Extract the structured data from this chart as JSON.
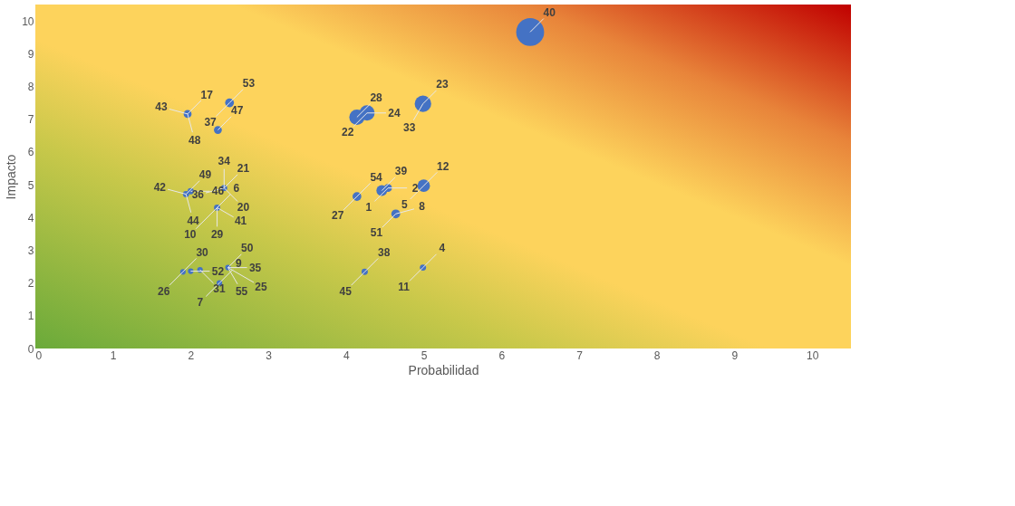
{
  "chart_data": {
    "type": "bubble",
    "xlabel": "Probabilidad",
    "ylabel": "Impacto",
    "xlim": [
      0,
      10.5
    ],
    "ylim": [
      0,
      10.5
    ],
    "xticks": [
      0,
      1,
      2,
      3,
      4,
      5,
      6,
      7,
      8,
      9,
      10
    ],
    "yticks": [
      0,
      1,
      2,
      3,
      4,
      5,
      6,
      7,
      8,
      9,
      10
    ],
    "grid": false,
    "series": [
      {
        "color": "#4472c4",
        "x": [
          6.37,
          1.96,
          2.5,
          2.35,
          4.14,
          4.27,
          4.99,
          1.94,
          2.0,
          2.43,
          2.34,
          4.14,
          4.46,
          4.54,
          5.0,
          4.64,
          1.9,
          2.0,
          2.12,
          2.48,
          2.37,
          4.24,
          4.99
        ],
        "values": [
          9.66,
          7.16,
          7.5,
          6.67,
          7.06,
          7.19,
          7.47,
          4.71,
          4.8,
          4.9,
          4.3,
          4.64,
          4.82,
          4.9,
          4.97,
          4.11,
          2.34,
          2.36,
          2.4,
          2.47,
          2.0,
          2.34,
          2.47
        ],
        "sizes": [
          1,
          0.08,
          0.1,
          0.08,
          0.3,
          0.3,
          0.35,
          0.05,
          0.05,
          0.05,
          0.05,
          0.1,
          0.15,
          0.08,
          0.2,
          0.1,
          0.04,
          0.04,
          0.04,
          0.04,
          0.04,
          0.05,
          0.05
        ]
      }
    ],
    "annotations": [
      {
        "text": "40",
        "x": 6.37,
        "y": 9.66
      },
      {
        "text": "17",
        "x": 1.96,
        "y": 7.16
      },
      {
        "text": "43",
        "x": 1.96,
        "y": 7.16
      },
      {
        "text": "48",
        "x": 1.96,
        "y": 7.16
      },
      {
        "text": "53",
        "x": 2.5,
        "y": 7.5
      },
      {
        "text": "37",
        "x": 2.5,
        "y": 7.5
      },
      {
        "text": "47",
        "x": 2.35,
        "y": 6.67
      },
      {
        "text": "28",
        "x": 4.14,
        "y": 7.06
      },
      {
        "text": "24",
        "x": 4.27,
        "y": 7.19
      },
      {
        "text": "22",
        "x": 4.27,
        "y": 7.19
      },
      {
        "text": "23",
        "x": 4.99,
        "y": 7.47
      },
      {
        "text": "33",
        "x": 4.99,
        "y": 7.47
      },
      {
        "text": "49",
        "x": 1.94,
        "y": 4.71
      },
      {
        "text": "42",
        "x": 1.94,
        "y": 4.71
      },
      {
        "text": "44",
        "x": 1.94,
        "y": 4.71
      },
      {
        "text": "46",
        "x": 2.0,
        "y": 4.8
      },
      {
        "text": "21",
        "x": 2.43,
        "y": 4.9
      },
      {
        "text": "34",
        "x": 2.43,
        "y": 4.9
      },
      {
        "text": "36",
        "x": 2.43,
        "y": 4.9
      },
      {
        "text": "20",
        "x": 2.43,
        "y": 4.9
      },
      {
        "text": "41",
        "x": 2.34,
        "y": 4.3
      },
      {
        "text": "6",
        "x": 2.34,
        "y": 4.3
      },
      {
        "text": "29",
        "x": 2.34,
        "y": 4.3
      },
      {
        "text": "10",
        "x": 2.34,
        "y": 4.3
      },
      {
        "text": "54",
        "x": 4.14,
        "y": 4.64
      },
      {
        "text": "27",
        "x": 4.14,
        "y": 4.64
      },
      {
        "text": "39",
        "x": 4.46,
        "y": 4.82
      },
      {
        "text": "2",
        "x": 4.54,
        "y": 4.9
      },
      {
        "text": "1",
        "x": 4.54,
        "y": 4.9
      },
      {
        "text": "12",
        "x": 5.0,
        "y": 4.97
      },
      {
        "text": "5",
        "x": 5.0,
        "y": 4.97
      },
      {
        "text": "8",
        "x": 4.64,
        "y": 4.11
      },
      {
        "text": "51",
        "x": 4.64,
        "y": 4.11
      },
      {
        "text": "30",
        "x": 1.9,
        "y": 2.34
      },
      {
        "text": "26",
        "x": 1.9,
        "y": 2.34
      },
      {
        "text": "52",
        "x": 2.0,
        "y": 2.36
      },
      {
        "text": "31",
        "x": 2.12,
        "y": 2.4
      },
      {
        "text": "50",
        "x": 2.48,
        "y": 2.47
      },
      {
        "text": "35",
        "x": 2.48,
        "y": 2.47
      },
      {
        "text": "55",
        "x": 2.48,
        "y": 2.47
      },
      {
        "text": "25",
        "x": 2.48,
        "y": 2.47
      },
      {
        "text": "9",
        "x": 2.37,
        "y": 2.0
      },
      {
        "text": "7",
        "x": 2.37,
        "y": 2.0
      },
      {
        "text": "38",
        "x": 4.24,
        "y": 2.34
      },
      {
        "text": "45",
        "x": 4.24,
        "y": 2.34
      },
      {
        "text": "4",
        "x": 4.99,
        "y": 2.47
      },
      {
        "text": "11",
        "x": 4.99,
        "y": 2.47
      }
    ]
  }
}
